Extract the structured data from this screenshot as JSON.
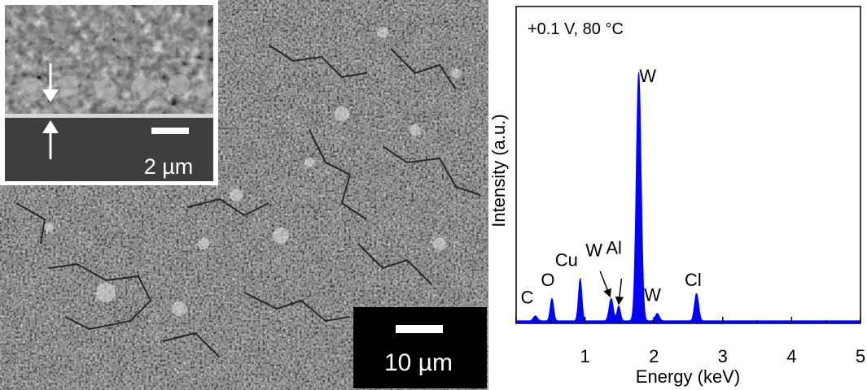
{
  "micrograph": {
    "main_scale_bar_label": "10 µm",
    "inset_scale_bar_label": "2 µm"
  },
  "chart_data": {
    "type": "area",
    "annotation": "+0.1 V, 80 °C",
    "xlabel": "Energy (keV)",
    "ylabel": "Intensity (a.u.)",
    "xlim": [
      0,
      5
    ],
    "ylim": [
      0,
      1
    ],
    "x_ticks": [
      "1",
      "2",
      "3",
      "4",
      "5"
    ],
    "fill_color": "#0000ff",
    "baseline": 0.01,
    "peaks": [
      {
        "label": "C",
        "x": 0.28,
        "height": 0.02,
        "width": 0.03
      },
      {
        "label": "O",
        "x": 0.52,
        "height": 0.09,
        "width": 0.025
      },
      {
        "label": "Cu",
        "x": 0.93,
        "height": 0.17,
        "width": 0.025
      },
      {
        "label": "W",
        "x": 1.38,
        "height": 0.09,
        "width": 0.03
      },
      {
        "label": "Al",
        "x": 1.49,
        "height": 0.06,
        "width": 0.025
      },
      {
        "label": "W",
        "x": 1.78,
        "height": 1.0,
        "width": 0.035
      },
      {
        "label": "W",
        "x": 2.05,
        "height": 0.03,
        "width": 0.03
      },
      {
        "label": "Cl",
        "x": 2.62,
        "height": 0.11,
        "width": 0.03
      }
    ],
    "labels": [
      {
        "text": "C",
        "x": 0.16,
        "y": 0.08
      },
      {
        "text": "O",
        "x": 0.46,
        "y": 0.15
      },
      {
        "text": "Cu",
        "x": 0.73,
        "y": 0.23
      },
      {
        "text": "W",
        "x": 1.13,
        "y": 0.27
      },
      {
        "text": "Al",
        "x": 1.42,
        "y": 0.28
      },
      {
        "text": "W",
        "x": 1.91,
        "y": 0.97
      },
      {
        "text": "W",
        "x": 1.98,
        "y": 0.09
      },
      {
        "text": "Cl",
        "x": 2.57,
        "y": 0.15
      }
    ],
    "arrows": [
      {
        "from": [
          1.22,
          0.21
        ],
        "to": [
          1.36,
          0.11
        ]
      },
      {
        "from": [
          1.53,
          0.18
        ],
        "to": [
          1.49,
          0.08
        ]
      }
    ]
  }
}
